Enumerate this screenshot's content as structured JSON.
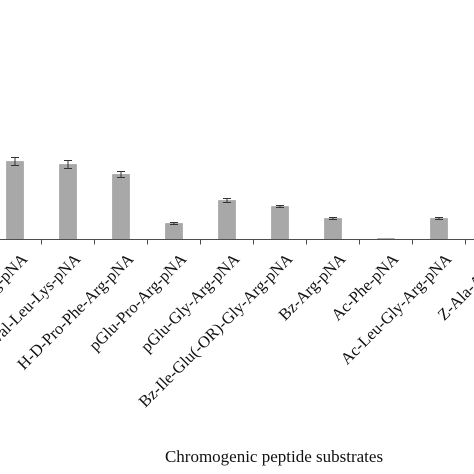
{
  "chart_data": {
    "type": "bar",
    "xlabel": "Chromogenic peptide substrates",
    "categories": [
      "...-pNA",
      "...Pro-Arg-pNA",
      "H-D-Val-Leu-Lys-pNA",
      "H-D-Pro-Phe-Arg-pNA",
      "pGlu-Pro-Arg-pNA",
      "pGlu-Gly-Arg-pNA",
      "Bz-Ile-Glu(-OR)-Gly-Arg-pNA",
      "Bz-Arg-pNA",
      "Ac-Phe-pNA",
      "Ac-Leu-Gly-Arg-pNA",
      "Z-Ala-Ala-...",
      "Z-..."
    ],
    "values": [
      null,
      78,
      75,
      65,
      16,
      39,
      33,
      21,
      1,
      21,
      null,
      null
    ],
    "errors": [
      null,
      4,
      4,
      3,
      1,
      2,
      1,
      1,
      0,
      1,
      null,
      null
    ],
    "bar_color": "#a8a8a8",
    "error_color": "#333333",
    "axis_color": "#4d4d4d",
    "grid": false,
    "legend": "none"
  }
}
